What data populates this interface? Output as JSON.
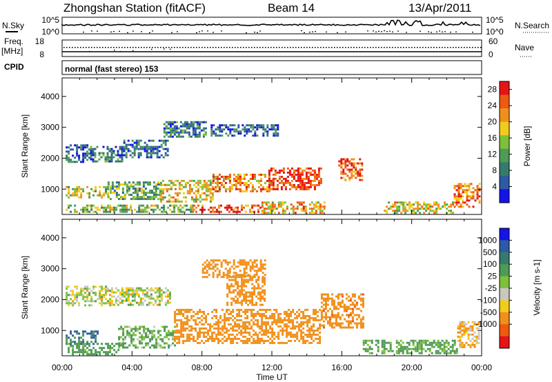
{
  "header": {
    "station": "Zhongshan Station (fitACF)",
    "beam": "Beam 14",
    "date": "13/Apr/2011"
  },
  "top_panels": {
    "nsky_label": "N.Sky",
    "nsearch_label": "N.Search",
    "count_ticks": [
      "10^5",
      "10^0"
    ],
    "freq_label_line1": "Freq.",
    "freq_label_line2": "[MHz]",
    "freq_ticks": [
      "18",
      "8"
    ],
    "nave_label": "Nave",
    "nave_ticks": [
      "60",
      "0"
    ],
    "cpid_label": "CPID",
    "cpid_text": "normal (fast stereo) 153"
  },
  "colors": {
    "power_scale": [
      "#1414e6",
      "#2d5aa5",
      "#377a6b",
      "#4f9a56",
      "#7fc03a",
      "#f2cc1c",
      "#f0901b",
      "#ee5a10",
      "#e61414"
    ],
    "velocity_scale": [
      "#1414e6",
      "#2d5aa5",
      "#377a6b",
      "#4f9a56",
      "#7fc03a",
      "#c8c8be",
      "#f2cc1c",
      "#f0901b",
      "#ee5a10",
      "#e61414"
    ]
  },
  "chart_data": [
    {
      "type": "heatmap",
      "title": "",
      "xlabel": "",
      "ylabel": "Slant Range [km]",
      "x_ticks": [
        "00:00",
        "04:00",
        "08:00",
        "12:00",
        "16:00",
        "20:00",
        "00:00"
      ],
      "y_ticks": [
        1000,
        2000,
        3000,
        4000
      ],
      "ylim": [
        180,
        4600
      ],
      "xlim_hours": [
        0,
        24
      ],
      "colorbar": {
        "label": "Power [dB]",
        "ticks": [
          "4",
          "8",
          "12",
          "16",
          "20",
          "24",
          "28"
        ],
        "range": [
          0,
          30
        ]
      },
      "regions": [
        {
          "t": [
            0.2,
            1.6
          ],
          "r": [
            1850,
            2450
          ],
          "v": 6
        },
        {
          "t": [
            1.6,
            3.5
          ],
          "r": [
            1900,
            2400
          ],
          "v": 7
        },
        {
          "t": [
            3.5,
            6.0
          ],
          "r": [
            2000,
            2600
          ],
          "v": 6
        },
        {
          "t": [
            0.2,
            2.6
          ],
          "r": [
            700,
            1100
          ],
          "v": 16
        },
        {
          "t": [
            2.6,
            5.6
          ],
          "r": [
            700,
            1250
          ],
          "v": 12
        },
        {
          "t": [
            5.6,
            8.6
          ],
          "r": [
            600,
            1300
          ],
          "v": 18
        },
        {
          "t": [
            8.6,
            11.8
          ],
          "r": [
            900,
            1500
          ],
          "v": 22
        },
        {
          "t": [
            11.8,
            14.8
          ],
          "r": [
            1000,
            1700
          ],
          "v": 27
        },
        {
          "t": [
            0.2,
            7.5
          ],
          "r": [
            250,
            500
          ],
          "v": 14
        },
        {
          "t": [
            7.5,
            11.4
          ],
          "r": [
            250,
            500
          ],
          "v": 26
        },
        {
          "t": [
            11.4,
            15.0
          ],
          "r": [
            250,
            600
          ],
          "v": 20
        },
        {
          "t": [
            15.8,
            17.2
          ],
          "r": [
            1300,
            2000
          ],
          "v": 24
        },
        {
          "t": [
            18.4,
            22.4
          ],
          "r": [
            250,
            600
          ],
          "v": 18
        },
        {
          "t": [
            22.4,
            23.9
          ],
          "r": [
            450,
            1200
          ],
          "v": 24
        },
        {
          "t": [
            5.8,
            8.2
          ],
          "r": [
            2700,
            3200
          ],
          "v": 8
        },
        {
          "t": [
            8.5,
            12.4
          ],
          "r": [
            2700,
            3100
          ],
          "v": 6
        }
      ]
    },
    {
      "type": "heatmap",
      "title": "",
      "xlabel": "Time UT",
      "ylabel": "Slant Range [km]",
      "x_ticks": [
        "00:00",
        "04:00",
        "08:00",
        "12:00",
        "16:00",
        "20:00",
        "00:00"
      ],
      "y_ticks": [
        1000,
        2000,
        3000,
        4000
      ],
      "ylim": [
        180,
        4600
      ],
      "xlim_hours": [
        0,
        24
      ],
      "colorbar": {
        "label": "Velocity [m s-1]",
        "ticks": [
          "1000",
          "500",
          "100",
          "25",
          "-25",
          "-100",
          "-500",
          "-1000"
        ]
      },
      "regions": [
        {
          "t": [
            0.2,
            2.8
          ],
          "r": [
            1800,
            2450
          ],
          "v": 10
        },
        {
          "t": [
            2.8,
            6.2
          ],
          "r": [
            1800,
            2400
          ],
          "v": 0
        },
        {
          "t": [
            0.2,
            2.0
          ],
          "r": [
            550,
            1000
          ],
          "v": 500
        },
        {
          "t": [
            0.2,
            3.2
          ],
          "r": [
            250,
            600
          ],
          "v": 200
        },
        {
          "t": [
            3.2,
            6.4
          ],
          "r": [
            450,
            1150
          ],
          "v": 120
        },
        {
          "t": [
            6.4,
            14.8
          ],
          "r": [
            600,
            1700
          ],
          "v": -350
        },
        {
          "t": [
            9.4,
            11.6
          ],
          "r": [
            1800,
            2800
          ],
          "v": -300
        },
        {
          "t": [
            14.8,
            17.2
          ],
          "r": [
            1100,
            2200
          ],
          "v": -400
        },
        {
          "t": [
            17.2,
            22.6
          ],
          "r": [
            250,
            700
          ],
          "v": 150
        },
        {
          "t": [
            22.6,
            23.9
          ],
          "r": [
            450,
            1300
          ],
          "v": -100
        },
        {
          "t": [
            8.0,
            11.6
          ],
          "r": [
            2750,
            3300
          ],
          "v": -250
        }
      ]
    }
  ]
}
